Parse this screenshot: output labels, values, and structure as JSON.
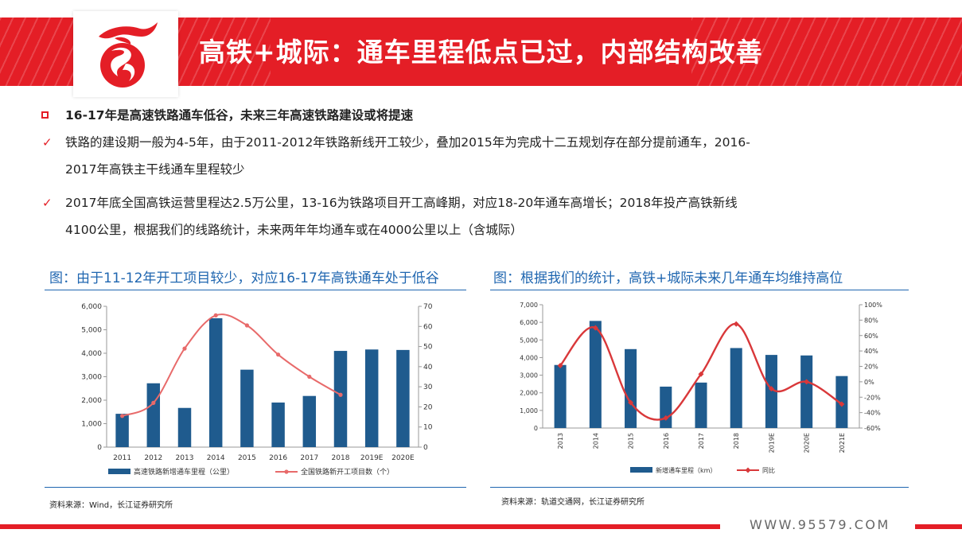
{
  "header": {
    "title": "高铁+城际：通车里程低点已过，内部结构改善"
  },
  "bullets": {
    "heading": "16-17年是高速铁路通车低谷，未来三年高速铁路建设或将提速",
    "item1_line1": "铁路的建设期一般为4-5年，由于2011-2012年铁路新线开工较少，叠加2015年为完成十二五规划存在部分提前通车，2016-",
    "item1_line2": "2017年高铁主干线通车里程较少",
    "item2_line1": "2017年底全国高铁运营里程达2.5万公里，13-16为铁路项目开工高峰期，对应18-20年通车高增长；2018年投产高铁新线",
    "item2_line2": "4100公里，根据我们的线路统计，未来两年年均通车或在4000公里以上（含城际）"
  },
  "captions": {
    "left": "图：由于11-12年开工项目较少，对应16-17年高铁通车处于低谷",
    "right": "图：根据我们的统计，高铁+城际未来几年通车均维持高位"
  },
  "sources": {
    "left": "资料来源：Wind，长江证券研究所",
    "right": "资料来源：轨道交通网，长江证券研究所"
  },
  "footer": {
    "url": "WWW.95579.COM"
  },
  "colors": {
    "accent": "#e41e26",
    "bar": "#1f5b8e",
    "line": "#e86a6a",
    "line2": "#d9383a",
    "caption": "#1f66b0"
  },
  "chart_data": [
    {
      "type": "bar",
      "categories": [
        "2011",
        "2012",
        "2013",
        "2014",
        "2015",
        "2016",
        "2017",
        "2018",
        "2019E",
        "2020E"
      ],
      "series": [
        {
          "name": "高速铁路新增通车里程（公里）",
          "type": "bar",
          "axis": "left",
          "values": [
            1420,
            2720,
            1670,
            5490,
            3300,
            1900,
            2180,
            4100,
            4160,
            4140
          ]
        },
        {
          "name": "全国铁路新开工项目数（个）",
          "type": "line",
          "axis": "right",
          "values": [
            15.5,
            22,
            49,
            65.5,
            60.5,
            46,
            35,
            26,
            null,
            null
          ]
        }
      ],
      "ylim": [
        0,
        6000
      ],
      "yticks": [
        "0",
        "1,000",
        "2,000",
        "3,000",
        "4,000",
        "5,000",
        "6,000"
      ],
      "y2lim": [
        0,
        70
      ],
      "y2ticks": [
        "0",
        "10",
        "20",
        "30",
        "40",
        "50",
        "60",
        "70"
      ],
      "legend": "bottom",
      "grid": false
    },
    {
      "type": "bar",
      "categories": [
        "2013",
        "2014",
        "2015",
        "2016",
        "2017",
        "2018",
        "2019E",
        "2020E",
        "2021E"
      ],
      "series": [
        {
          "name": "新增通车里程（km）",
          "type": "bar",
          "axis": "left",
          "values": [
            3580,
            6080,
            4480,
            2350,
            2580,
            4540,
            4150,
            4120,
            2950
          ]
        },
        {
          "name": "同比",
          "type": "line",
          "axis": "right",
          "values": [
            21,
            70,
            -27,
            -47,
            10,
            75,
            -9,
            0,
            -29
          ]
        }
      ],
      "ylim": [
        0,
        7000
      ],
      "yticks": [
        "0",
        "1,000",
        "2,000",
        "3,000",
        "4,000",
        "5,000",
        "6,000",
        "7,000"
      ],
      "y2lim": [
        -60,
        100
      ],
      "y2ticks": [
        "-60%",
        "-40%",
        "-20%",
        "0%",
        "20%",
        "40%",
        "60%",
        "80%",
        "100%"
      ],
      "legend": "bottom",
      "grid": false
    }
  ]
}
